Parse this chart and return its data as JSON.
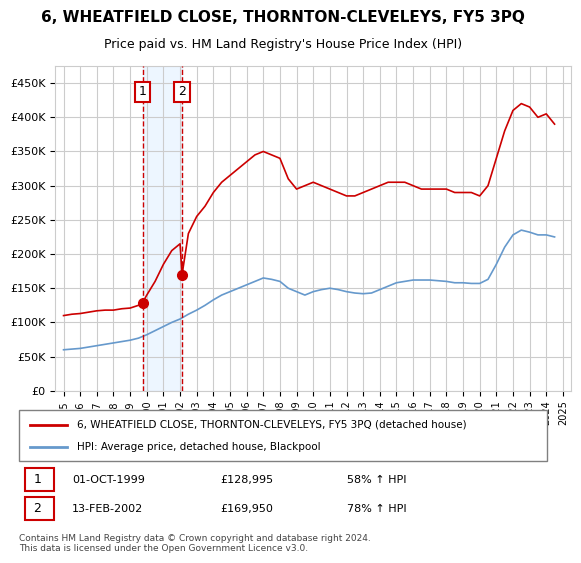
{
  "title": "6, WHEATFIELD CLOSE, THORNTON-CLEVELEYS, FY5 3PQ",
  "subtitle": "Price paid vs. HM Land Registry's House Price Index (HPI)",
  "legend_line1": "6, WHEATFIELD CLOSE, THORNTON-CLEVELEYS, FY5 3PQ (detached house)",
  "legend_line2": "HPI: Average price, detached house, Blackpool",
  "footer": "Contains HM Land Registry data © Crown copyright and database right 2024.\nThis data is licensed under the Open Government Licence v3.0.",
  "transaction1_date": "01-OCT-1999",
  "transaction1_price": "£128,995",
  "transaction1_hpi": "58% ↑ HPI",
  "transaction1_year": 1999.75,
  "transaction1_value": 128995,
  "transaction2_date": "13-FEB-2002",
  "transaction2_price": "£169,950",
  "transaction2_hpi": "78% ↑ HPI",
  "transaction2_year": 2002.12,
  "transaction2_value": 169950,
  "red_color": "#cc0000",
  "blue_color": "#6699cc",
  "grid_color": "#cccccc",
  "background_color": "#ffffff",
  "marker_bg": "#ffcccc",
  "ylim": [
    0,
    475000
  ],
  "xlim": [
    1994.5,
    2025.5
  ],
  "red_x": [
    1995.0,
    1995.5,
    1996.0,
    1996.5,
    1997.0,
    1997.5,
    1998.0,
    1998.5,
    1999.0,
    1999.5,
    1999.75,
    2000.0,
    2000.5,
    2001.0,
    2001.5,
    2002.0,
    2002.12,
    2002.5,
    2003.0,
    2003.5,
    2004.0,
    2004.5,
    2005.0,
    2005.5,
    2006.0,
    2006.5,
    2007.0,
    2007.5,
    2008.0,
    2008.5,
    2009.0,
    2009.5,
    2010.0,
    2010.5,
    2011.0,
    2011.5,
    2012.0,
    2012.5,
    2013.0,
    2013.5,
    2014.0,
    2014.5,
    2015.0,
    2015.5,
    2016.0,
    2016.5,
    2017.0,
    2017.5,
    2018.0,
    2018.5,
    2019.0,
    2019.5,
    2020.0,
    2020.5,
    2021.0,
    2021.5,
    2022.0,
    2022.5,
    2023.0,
    2023.5,
    2024.0,
    2024.5
  ],
  "red_y": [
    110000,
    112000,
    113000,
    115000,
    117000,
    118000,
    118000,
    120000,
    121000,
    125000,
    128995,
    140000,
    160000,
    185000,
    205000,
    215000,
    169950,
    230000,
    255000,
    270000,
    290000,
    305000,
    315000,
    325000,
    335000,
    345000,
    350000,
    345000,
    340000,
    310000,
    295000,
    300000,
    305000,
    300000,
    295000,
    290000,
    285000,
    285000,
    290000,
    295000,
    300000,
    305000,
    305000,
    305000,
    300000,
    295000,
    295000,
    295000,
    295000,
    290000,
    290000,
    290000,
    285000,
    300000,
    340000,
    380000,
    410000,
    420000,
    415000,
    400000,
    405000,
    390000
  ],
  "blue_x": [
    1995.0,
    1995.5,
    1996.0,
    1996.5,
    1997.0,
    1997.5,
    1998.0,
    1998.5,
    1999.0,
    1999.5,
    2000.0,
    2000.5,
    2001.0,
    2001.5,
    2002.0,
    2002.5,
    2003.0,
    2003.5,
    2004.0,
    2004.5,
    2005.0,
    2005.5,
    2006.0,
    2006.5,
    2007.0,
    2007.5,
    2008.0,
    2008.5,
    2009.0,
    2009.5,
    2010.0,
    2010.5,
    2011.0,
    2011.5,
    2012.0,
    2012.5,
    2013.0,
    2013.5,
    2014.0,
    2014.5,
    2015.0,
    2015.5,
    2016.0,
    2016.5,
    2017.0,
    2017.5,
    2018.0,
    2018.5,
    2019.0,
    2019.5,
    2020.0,
    2020.5,
    2021.0,
    2021.5,
    2022.0,
    2022.5,
    2023.0,
    2023.5,
    2024.0,
    2024.5
  ],
  "blue_y": [
    60000,
    61000,
    62000,
    64000,
    66000,
    68000,
    70000,
    72000,
    74000,
    77000,
    82000,
    88000,
    94000,
    100000,
    105000,
    112000,
    118000,
    125000,
    133000,
    140000,
    145000,
    150000,
    155000,
    160000,
    165000,
    163000,
    160000,
    150000,
    145000,
    140000,
    145000,
    148000,
    150000,
    148000,
    145000,
    143000,
    142000,
    143000,
    148000,
    153000,
    158000,
    160000,
    162000,
    162000,
    162000,
    161000,
    160000,
    158000,
    158000,
    157000,
    157000,
    163000,
    185000,
    210000,
    228000,
    235000,
    232000,
    228000,
    228000,
    225000
  ]
}
